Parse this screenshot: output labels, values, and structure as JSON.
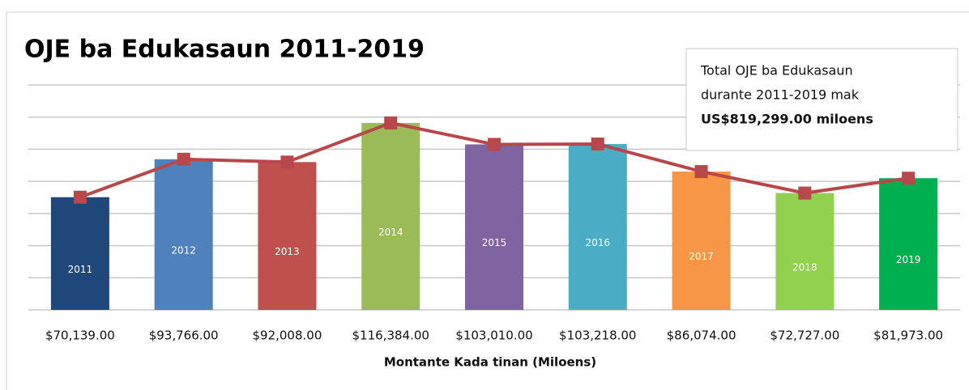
{
  "chart_data": {
    "type": "bar_line",
    "title": "OJE ba Edukasaun 2011-2019",
    "categories": [
      "2011",
      "2012",
      "2013",
      "2014",
      "2015",
      "2016",
      "2017",
      "2018",
      "2019"
    ],
    "values": [
      70139,
      93766,
      92008,
      116384,
      103010,
      103218,
      86074,
      72727,
      81973
    ],
    "value_labels": [
      "$70,139.00",
      "$93,766.00",
      "$92,008.00",
      "$116,384.00",
      "$103,010.00",
      "$103,218.00",
      "$86,074.00",
      "$72,727.00",
      "$81,973.00"
    ],
    "colors": [
      "#1f477a",
      "#4f81bd",
      "#c0504d",
      "#9bbb59",
      "#8064a2",
      "#4bacc6",
      "#f79646",
      "#92d050",
      "#00b050"
    ],
    "line_color": "#b7474a",
    "xlabel": "Montante Kada tinan (Miloens)",
    "ylim": [
      0,
      140000
    ],
    "yticks": [
      0,
      20000,
      40000,
      60000,
      80000,
      100000,
      120000,
      140000
    ],
    "grid": true,
    "annotation": [
      "Total OJE ba Edukasaun",
      "durante 2011-2019 mak",
      "US$819,299.00 miloens"
    ]
  }
}
